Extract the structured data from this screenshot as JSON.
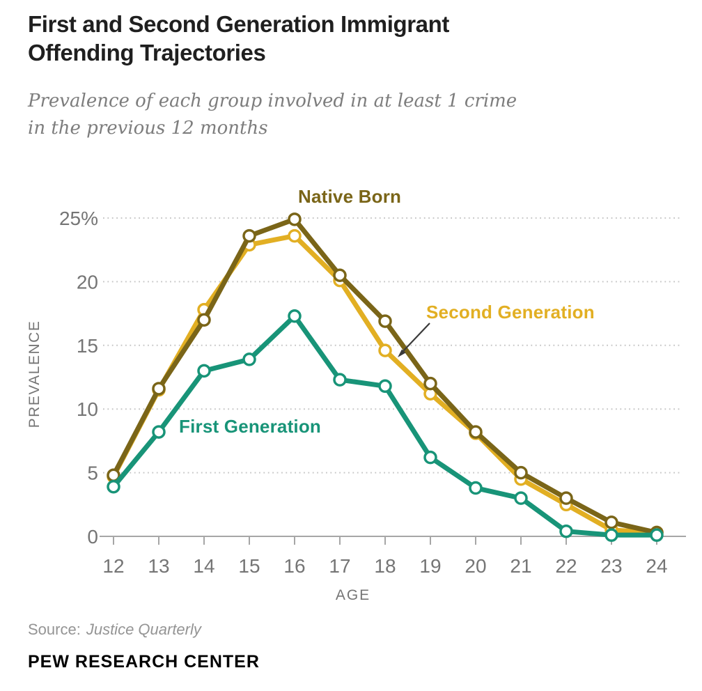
{
  "header": {
    "title_line1": "First and Second Generation Immigrant",
    "title_line2": "Offending Trajectories",
    "subtitle_line1": "Prevalence of each group involved in at least 1 crime",
    "subtitle_line2": "in the previous 12 months"
  },
  "chart_data": {
    "type": "line",
    "x": [
      12,
      13,
      14,
      15,
      16,
      17,
      18,
      19,
      20,
      21,
      22,
      23,
      24
    ],
    "xlabel": "AGE",
    "ylabel": "PREVALENCE",
    "ylim": [
      0,
      26
    ],
    "yticks": [
      0,
      5,
      10,
      15,
      20,
      25
    ],
    "ytick_labels": [
      "0",
      "5",
      "10",
      "15",
      "20",
      "25%"
    ],
    "grid": "horizontal dotted gridlines at 5,10,15,20,25; solid baseline at 0 with ticks per age",
    "legend": "inline series labels; thin arrow connects Second Generation label to its line near age 18",
    "marker_style": "white-filled circles outlined in series color",
    "series": [
      {
        "name": "Native Born",
        "color": "#7a6518",
        "values": [
          4.8,
          11.6,
          17.0,
          23.6,
          24.9,
          20.5,
          16.9,
          12.0,
          8.2,
          5.0,
          3.0,
          1.1,
          0.3
        ]
      },
      {
        "name": "Second Generation",
        "color": "#e2af23",
        "values": [
          4.7,
          11.5,
          17.8,
          22.9,
          23.6,
          20.1,
          14.6,
          11.2,
          8.1,
          4.5,
          2.5,
          0.5,
          0.3
        ]
      },
      {
        "name": "First Generation",
        "color": "#189478",
        "values": [
          3.9,
          8.2,
          13.0,
          13.9,
          17.3,
          12.3,
          11.8,
          6.2,
          3.8,
          3.0,
          0.4,
          0.1,
          0.1
        ]
      }
    ],
    "colors": {
      "gridline": "#c6c6c6",
      "axis": "#a6a6a6",
      "tick_label": "#757575",
      "annotation_arrow": "#3a3a3a"
    }
  },
  "footer": {
    "source_prefix": "Source:",
    "source_name": "Justice Quarterly",
    "brand": "PEW RESEARCH CENTER"
  }
}
